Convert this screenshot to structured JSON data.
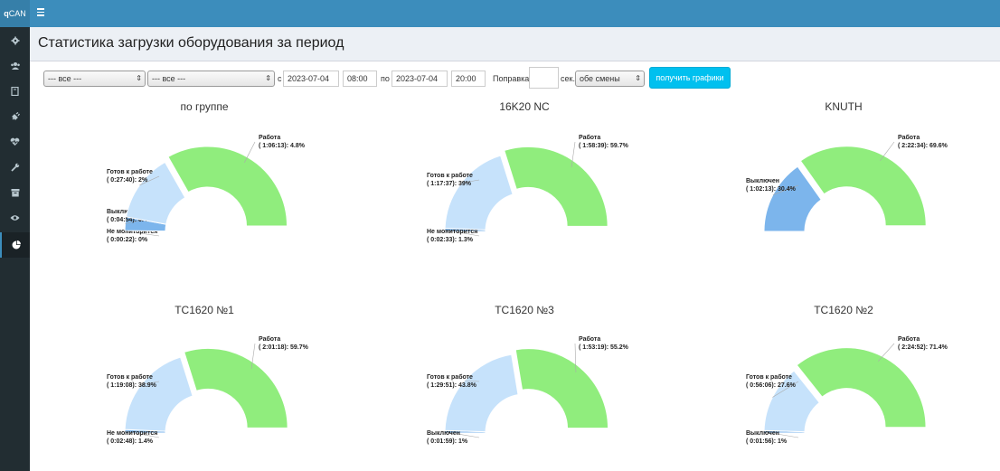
{
  "app": {
    "brand_bold": "q",
    "brand_rest": "CAN"
  },
  "page": {
    "title": "Статистика загрузки оборудования за период"
  },
  "filters": {
    "group_select": "--- все ---",
    "machine_select": "--- все ---",
    "from_label": "с",
    "from_date": "2023-07-04",
    "from_time": "08:00",
    "to_label": "по",
    "to_date": "2023-07-04",
    "to_time": "20:00",
    "correction_label": "Поправка",
    "correction_value": "",
    "sec_label": "сек.",
    "shift_select": "обе смены",
    "submit_label": "получить графики"
  },
  "sidebar": {
    "items": [
      {
        "icon": "gear-icon"
      },
      {
        "icon": "users-icon"
      },
      {
        "icon": "book-icon"
      },
      {
        "icon": "plug-icon"
      },
      {
        "icon": "heartbeat-icon"
      },
      {
        "icon": "wrench-icon"
      },
      {
        "icon": "archive-icon"
      },
      {
        "icon": "eye-icon"
      },
      {
        "icon": "pie-chart-icon",
        "active": true
      }
    ]
  },
  "colors": {
    "work": "#90ed7d",
    "ready": "#c6e2fb",
    "off": "#7cb5ec",
    "not_monitored": "#7cb5ec"
  },
  "chart_data": [
    {
      "type": "pie",
      "title": "по группе",
      "slices": [
        {
          "label": "Не мониторится",
          "duration": "( 0:00:22)",
          "value": 0,
          "color": "#7cb5ec"
        },
        {
          "label": "Выключен",
          "duration": "( 0:04:54)",
          "value": 0.4,
          "color": "#7cb5ec"
        },
        {
          "label": "Готов к работе",
          "duration": "( 0:27:40)",
          "value": 2,
          "color": "#c6e2fb"
        },
        {
          "label": "Работа",
          "duration": "( 1:06:13)",
          "value": 4.8,
          "color": "#90ed7d"
        }
      ]
    },
    {
      "type": "pie",
      "title": "16K20 NC",
      "slices": [
        {
          "label": "Не мониторится",
          "duration": "( 0:02:33)",
          "value": 1.3,
          "color": "#7cb5ec"
        },
        {
          "label": "Готов к работе",
          "duration": "( 1:17:37)",
          "value": 39,
          "color": "#c6e2fb"
        },
        {
          "label": "Работа",
          "duration": "( 1:58:39)",
          "value": 59.7,
          "color": "#90ed7d"
        }
      ]
    },
    {
      "type": "pie",
      "title": "KNUTH",
      "slices": [
        {
          "label": "Выключен",
          "duration": "( 1:02:13)",
          "value": 30.4,
          "color": "#7cb5ec"
        },
        {
          "label": "Работа",
          "duration": "( 2:22:34)",
          "value": 69.6,
          "color": "#90ed7d"
        }
      ]
    },
    {
      "type": "pie",
      "title": "TC1620 №1",
      "slices": [
        {
          "label": "Не мониторится",
          "duration": "( 0:02:48)",
          "value": 1.4,
          "color": "#7cb5ec"
        },
        {
          "label": "Готов к работе",
          "duration": "( 1:19:08)",
          "value": 38.9,
          "color": "#c6e2fb"
        },
        {
          "label": "Работа",
          "duration": "( 2:01:18)",
          "value": 59.7,
          "color": "#90ed7d"
        }
      ]
    },
    {
      "type": "pie",
      "title": "TC1620 №3",
      "slices": [
        {
          "label": "Выключен",
          "duration": "( 0:01:59)",
          "value": 1,
          "color": "#7cb5ec"
        },
        {
          "label": "Готов к работе",
          "duration": "( 1:29:51)",
          "value": 43.8,
          "color": "#c6e2fb"
        },
        {
          "label": "Работа",
          "duration": "( 1:53:19)",
          "value": 55.2,
          "color": "#90ed7d"
        }
      ]
    },
    {
      "type": "pie",
      "title": "TC1620 №2",
      "slices": [
        {
          "label": "Выключен",
          "duration": "( 0:01:56)",
          "value": 1,
          "color": "#7cb5ec"
        },
        {
          "label": "Готов к работе",
          "duration": "( 0:56:06)",
          "value": 27.6,
          "color": "#c6e2fb"
        },
        {
          "label": "Работа",
          "duration": "( 2:24:52)",
          "value": 71.4,
          "color": "#90ed7d"
        }
      ]
    }
  ]
}
